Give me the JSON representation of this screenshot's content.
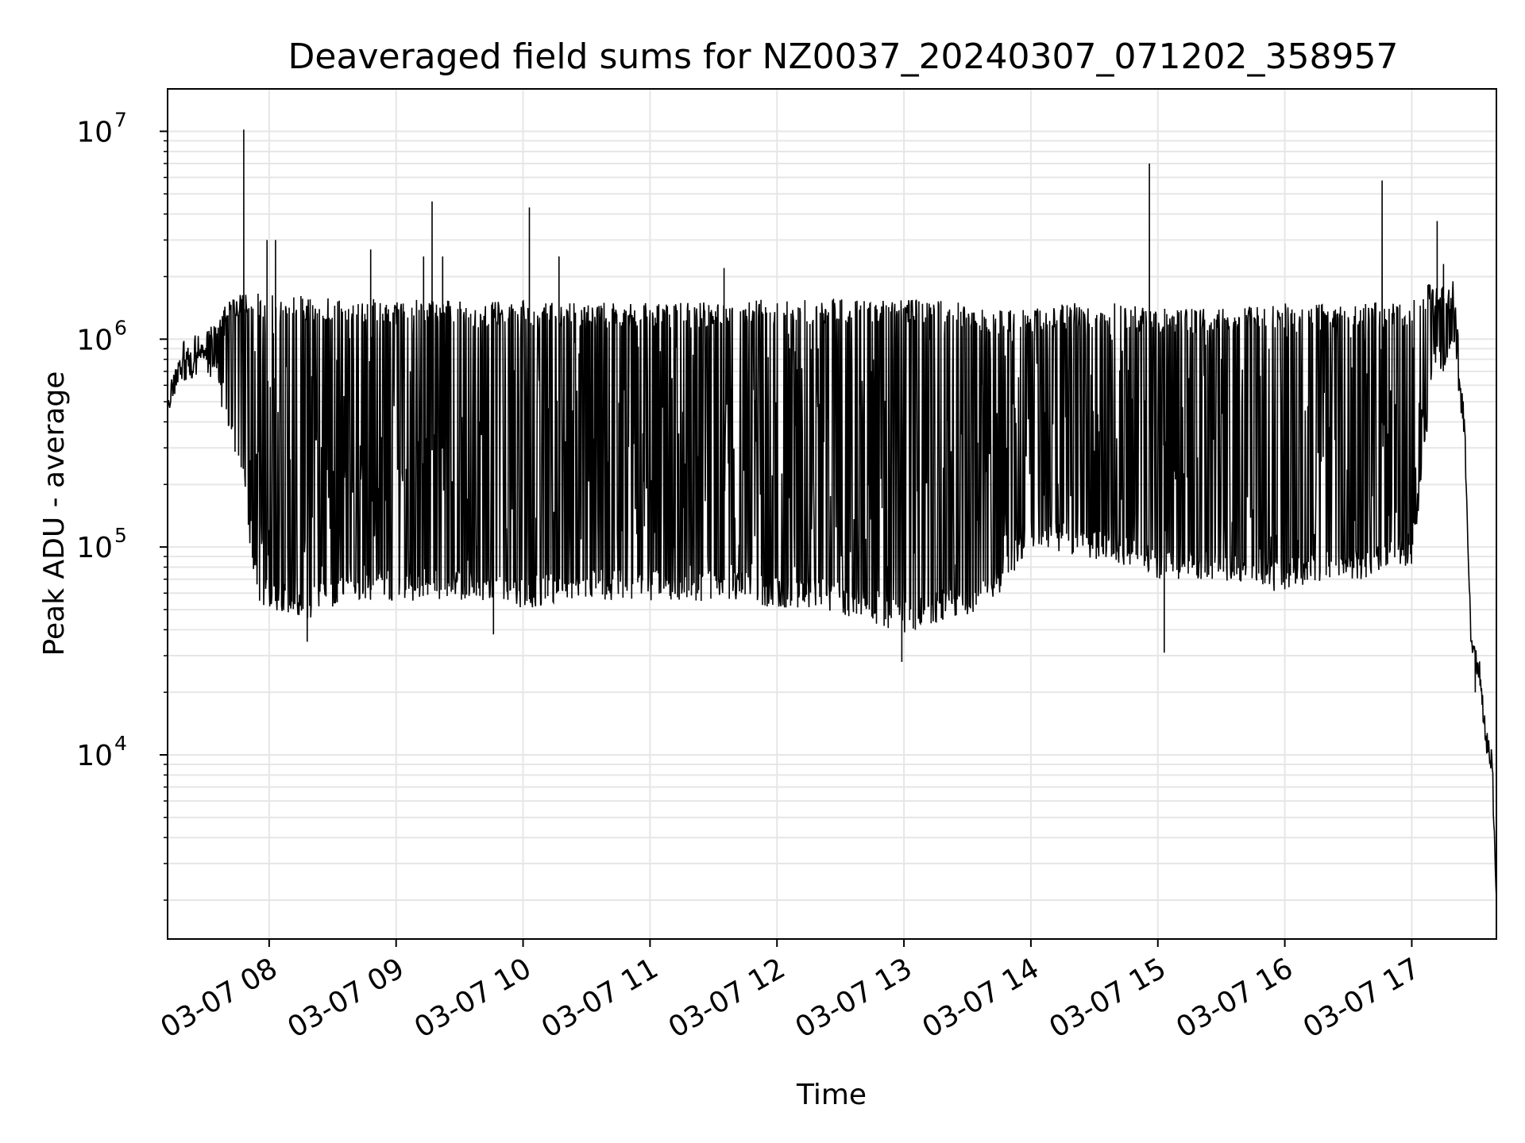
{
  "chart_data": {
    "type": "line",
    "title": "Deaveraged field sums for NZ0037_20240307_071202_358957",
    "xlabel": "Time",
    "ylabel": "Peak ADU - average",
    "yscale": "log",
    "ylim": [
      1300,
      16000000
    ],
    "xlim": [
      "2024-03-07 07:12",
      "2024-03-07 17:40"
    ],
    "x_ticks": [
      "2024-03-07 08:00",
      "2024-03-07 09:00",
      "2024-03-07 10:00",
      "2024-03-07 11:00",
      "2024-03-07 12:00",
      "2024-03-07 13:00",
      "2024-03-07 14:00",
      "2024-03-07 15:00",
      "2024-03-07 16:00",
      "2024-03-07 17:00"
    ],
    "x_tick_labels": [
      "03-07 08",
      "03-07 09",
      "03-07 10",
      "03-07 11",
      "03-07 12",
      "03-07 13",
      "03-07 14",
      "03-07 15",
      "03-07 16",
      "03-07 17"
    ],
    "y_ticks": [
      10000,
      100000,
      1000000,
      10000000
    ],
    "y_tick_labels": [
      {
        "base": "10",
        "exp": "4"
      },
      {
        "base": "10",
        "exp": "5"
      },
      {
        "base": "10",
        "exp": "6"
      },
      {
        "base": "10",
        "exp": "7"
      }
    ],
    "grid": true,
    "line_color": "#000000",
    "grid_color": "#e6e6e6",
    "series": [
      {
        "x": [
          "07:12",
          "07:20",
          "07:30",
          "07:40",
          "07:48",
          "07:52",
          "07:55",
          "08:00",
          "08:20",
          "08:40",
          "09:00",
          "09:20",
          "09:40",
          "10:00",
          "10:20",
          "10:40",
          "11:00",
          "11:20",
          "11:40",
          "12:00",
          "12:20",
          "12:40",
          "13:00",
          "13:20",
          "13:40",
          "14:00",
          "14:20",
          "14:40",
          "15:00",
          "15:20",
          "15:40",
          "16:00",
          "16:20",
          "16:40",
          "17:00",
          "17:10",
          "17:20",
          "17:25",
          "17:28",
          "17:30",
          "17:32",
          "17:35",
          "17:38",
          "17:40"
        ],
        "y": [
          500000,
          800000,
          900000,
          700000,
          500000,
          350000,
          200000,
          300000,
          250000,
          300000,
          250000,
          300000,
          280000,
          300000,
          280000,
          300000,
          300000,
          320000,
          300000,
          280000,
          300000,
          280000,
          250000,
          280000,
          300000,
          400000,
          450000,
          400000,
          380000,
          350000,
          330000,
          300000,
          350000,
          400000,
          380000,
          900000,
          1000000,
          300000,
          35000,
          30000,
          25000,
          12000,
          9000,
          2000
        ],
        "low": [
          500000,
          600000,
          700000,
          400000,
          200000,
          80000,
          55000,
          50000,
          45000,
          55000,
          55000,
          55000,
          55000,
          50000,
          55000,
          55000,
          55000,
          55000,
          55000,
          50000,
          50000,
          45000,
          38000,
          45000,
          50000,
          100000,
          90000,
          85000,
          70000,
          70000,
          65000,
          60000,
          70000,
          70000,
          80000,
          600000,
          800000,
          300000,
          35000,
          30000,
          25000,
          12000,
          9000,
          2000
        ],
        "high": [
          700000,
          1000000,
          1100000,
          1500000,
          1700000,
          1700000,
          1700000,
          1650000,
          1600000,
          1600000,
          1550000,
          1550000,
          1500000,
          1550000,
          1500000,
          1500000,
          1500000,
          1500000,
          1550000,
          1550000,
          1550000,
          1600000,
          1550000,
          1550000,
          1400000,
          1400000,
          1500000,
          1500000,
          1400000,
          1400000,
          1450000,
          1500000,
          1500000,
          1500000,
          1500000,
          2000000,
          1900000,
          500000,
          40000,
          35000,
          30000,
          14000,
          10000,
          2000
        ]
      }
    ],
    "spikes": [
      {
        "x": "07:48",
        "y": 10200000
      },
      {
        "x": "07:59",
        "y": 3000000
      },
      {
        "x": "08:03",
        "y": 3000000
      },
      {
        "x": "08:48",
        "y": 2700000
      },
      {
        "x": "09:13",
        "y": 2500000
      },
      {
        "x": "09:17",
        "y": 4600000
      },
      {
        "x": "09:22",
        "y": 2500000
      },
      {
        "x": "10:03",
        "y": 4300000
      },
      {
        "x": "10:17",
        "y": 2500000
      },
      {
        "x": "11:35",
        "y": 2200000
      },
      {
        "x": "14:56",
        "y": 7000000
      },
      {
        "x": "16:46",
        "y": 5800000
      },
      {
        "x": "17:12",
        "y": 3700000
      },
      {
        "x": "17:15",
        "y": 2300000
      }
    ],
    "dips": [
      {
        "x": "08:18",
        "y": 35000
      },
      {
        "x": "09:46",
        "y": 38000
      },
      {
        "x": "12:59",
        "y": 28000
      },
      {
        "x": "15:03",
        "y": 31000
      },
      {
        "x": "17:30",
        "y": 20000
      }
    ]
  }
}
